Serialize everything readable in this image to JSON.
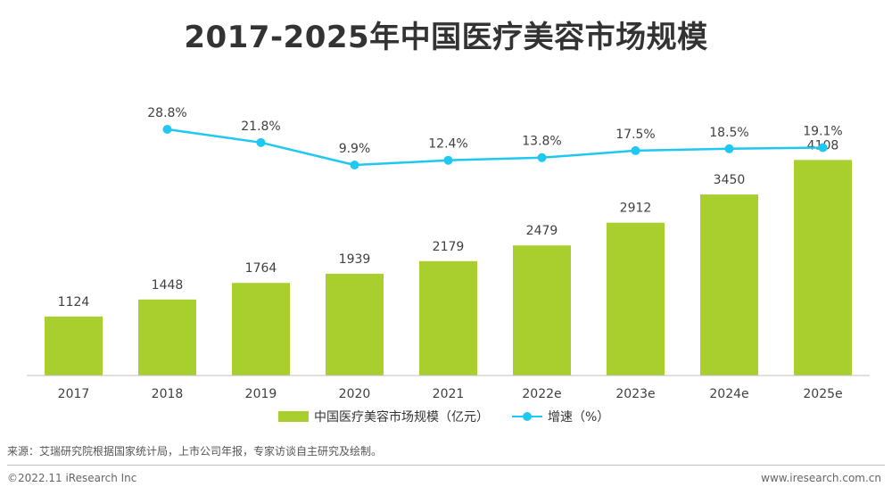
{
  "title": "2017-2025年中国医疗美容市场规模",
  "chart_data": {
    "type": "bar",
    "categories": [
      "2017",
      "2018",
      "2019",
      "2020",
      "2021",
      "2022e",
      "2023e",
      "2024e",
      "2025e"
    ],
    "series": [
      {
        "name": "中国医疗美容市场规模（亿元）",
        "type": "bar",
        "color": "#a8cf2e",
        "values": [
          1124,
          1448,
          1764,
          1939,
          2179,
          2479,
          2912,
          3450,
          4108
        ],
        "labels": [
          "1124",
          "1448",
          "1764",
          "1939",
          "2179",
          "2479",
          "2912",
          "3450",
          "4108"
        ]
      },
      {
        "name": "增速（%）",
        "type": "line",
        "color": "#1ec8f0",
        "values": [
          null,
          28.8,
          21.8,
          9.9,
          12.4,
          13.8,
          17.5,
          18.5,
          19.1
        ],
        "labels": [
          null,
          "28.8%",
          "21.8%",
          "9.9%",
          "12.4%",
          "13.8%",
          "17.5%",
          "18.5%",
          "19.1%"
        ]
      }
    ],
    "bar_ylim": [
      0,
      5000
    ],
    "line_ylim": [
      -60,
      34
    ],
    "xlabel": "",
    "ylabel": "",
    "grid": false,
    "legend_position": "bottom"
  },
  "source": "来源：艾瑞研究院根据国家统计局，上市公司年报，专家访谈自主研究及绘制。",
  "copyright": "©2022.11 iResearch Inc",
  "website": "www.iresearch.com.cn"
}
